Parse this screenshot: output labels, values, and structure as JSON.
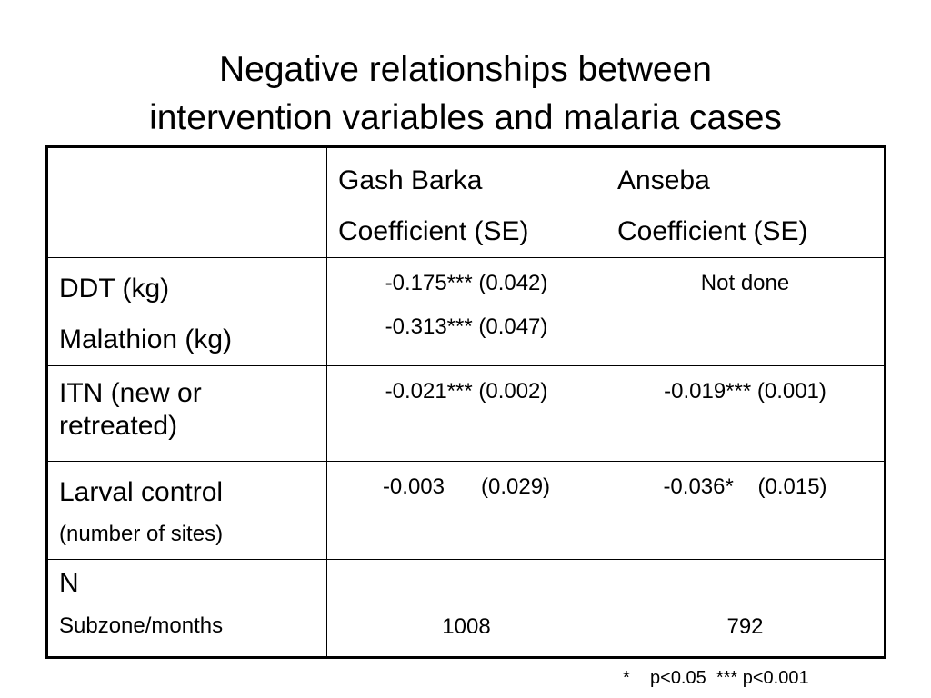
{
  "title": [
    "Negative relationships between",
    "intervention variables and malaria cases"
  ],
  "table": {
    "columns": [
      [
        "Gash Barka",
        "Coefficient (SE)"
      ],
      [
        "Anseba",
        "Coefficient (SE)"
      ]
    ],
    "rows": [
      {
        "label": [
          "DDT (kg)",
          "Malathion (kg)"
        ],
        "cells": [
          [
            "-0.175*** (0.042)",
            "-0.313*** (0.047)"
          ],
          [
            "Not done"
          ]
        ]
      },
      {
        "label": [
          "ITN (new or retreated)"
        ],
        "cells": [
          [
            "-0.021*** (0.002)"
          ],
          [
            "-0.019*** (0.001)"
          ]
        ]
      },
      {
        "label": [
          "Larval control",
          "(number of sites)"
        ],
        "cells": [
          [
            "-0.003      (0.029)"
          ],
          [
            "-0.036*    (0.015)"
          ]
        ]
      },
      {
        "label": [
          "N",
          "Subzone/months"
        ],
        "cells": [
          [
            "1008"
          ],
          [
            "792"
          ]
        ]
      }
    ]
  },
  "footnote": "*    p<0.05  *** p<0.001"
}
